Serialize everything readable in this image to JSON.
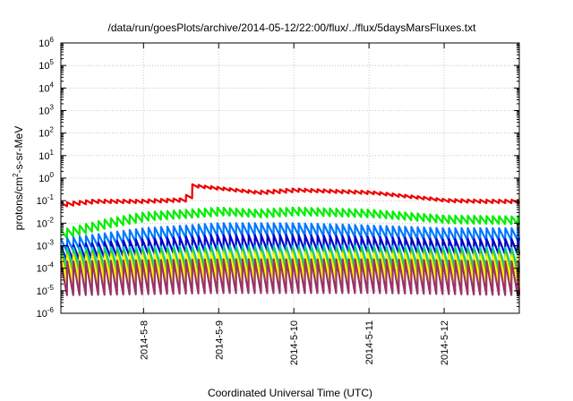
{
  "chart_data": {
    "type": "line",
    "title": "/data/run/goesPlots/archive/2014-05-12/22:00/flux/../flux/5daysMarsFluxes.txt",
    "xlabel": "Coordinated Universal Time (UTC)",
    "ylabel": {
      "pre": "protons/cm",
      "sup": "2",
      "post": "-s-sr-MeV"
    },
    "yscale": "log",
    "ylim_exp": [
      -6,
      6
    ],
    "y_ticks": [
      {
        "base": "10",
        "exp": "-6",
        "value": 1e-06
      },
      {
        "base": "10",
        "exp": "-5",
        "value": 1e-05
      },
      {
        "base": "10",
        "exp": "-4",
        "value": 0.0001
      },
      {
        "base": "10",
        "exp": "-3",
        "value": 0.001
      },
      {
        "base": "10",
        "exp": "-2",
        "value": 0.01
      },
      {
        "base": "10",
        "exp": "-1",
        "value": 0.1
      },
      {
        "base": "10",
        "exp": "0",
        "value": 1
      },
      {
        "base": "10",
        "exp": "1",
        "value": 10
      },
      {
        "base": "10",
        "exp": "2",
        "value": 100
      },
      {
        "base": "10",
        "exp": "3",
        "value": 1000
      },
      {
        "base": "10",
        "exp": "4",
        "value": 10000
      },
      {
        "base": "10",
        "exp": "5",
        "value": 100000
      },
      {
        "base": "10",
        "exp": "6",
        "value": 1000000
      }
    ],
    "x_ticks": [
      "2014-5-8",
      "2014-5-9",
      "2014-5-10",
      "2014-5-11",
      "2014-5-12"
    ],
    "x_tick_days": [
      1.0,
      2.0,
      3.0,
      4.0,
      5.0
    ],
    "x_range_days": [
      -0.1,
      6.0
    ],
    "sawtooth_period_days": 0.0833,
    "grid": true,
    "legend": "none",
    "series": [
      {
        "color": "#ee0000",
        "profile": [
          [
            -0.1,
            0.08
          ],
          [
            0.3,
            0.11
          ],
          [
            0.9,
            0.11
          ],
          [
            1.55,
            0.13
          ],
          [
            1.62,
            0.55
          ],
          [
            2.5,
            0.27
          ],
          [
            3.0,
            0.35
          ],
          [
            4.0,
            0.27
          ],
          [
            5.0,
            0.12
          ],
          [
            5.5,
            0.11
          ],
          [
            6.0,
            0.11
          ]
        ],
        "swing_decades": 0.15
      },
      {
        "color": "#00ee00",
        "profile": [
          [
            -0.1,
            0.005
          ],
          [
            0.5,
            0.015
          ],
          [
            1.0,
            0.03
          ],
          [
            1.6,
            0.04
          ],
          [
            2.0,
            0.05
          ],
          [
            2.5,
            0.04
          ],
          [
            3.0,
            0.05
          ],
          [
            4.0,
            0.04
          ],
          [
            5.0,
            0.022
          ],
          [
            6.0,
            0.02
          ]
        ],
        "swing_decades": 0.35
      },
      {
        "color": "#0077ff",
        "profile": [
          [
            -0.1,
            0.002
          ],
          [
            1.0,
            0.006
          ],
          [
            2.0,
            0.01
          ],
          [
            3.0,
            0.01
          ],
          [
            4.0,
            0.008
          ],
          [
            5.0,
            0.006
          ],
          [
            6.0,
            0.006
          ]
        ],
        "swing_decades": 0.55
      },
      {
        "color": "#0000cc",
        "profile": [
          [
            -0.1,
            0.001
          ],
          [
            1.0,
            0.002
          ],
          [
            2.0,
            0.003
          ],
          [
            3.0,
            0.003
          ],
          [
            4.0,
            0.0025
          ],
          [
            5.0,
            0.002
          ],
          [
            6.0,
            0.002
          ]
        ],
        "swing_decades": 0.7
      },
      {
        "color": "#00cccc",
        "profile": [
          [
            -0.1,
            0.0008
          ],
          [
            2.0,
            0.001
          ],
          [
            4.0,
            0.001
          ],
          [
            6.0,
            0.0008
          ]
        ],
        "swing_decades": 0.9
      },
      {
        "color": "#33cc33",
        "profile": [
          [
            -0.1,
            0.0006
          ],
          [
            2.0,
            0.0007
          ],
          [
            4.0,
            0.0007
          ],
          [
            6.0,
            0.0006
          ]
        ],
        "swing_decades": 1.0
      },
      {
        "color": "#dddd00",
        "profile": [
          [
            -0.1,
            0.0004
          ],
          [
            2.0,
            0.0005
          ],
          [
            4.0,
            0.0005
          ],
          [
            6.0,
            0.0004
          ]
        ],
        "swing_decades": 1.1
      },
      {
        "color": "#ffff00",
        "profile": [
          [
            -0.1,
            0.0003
          ],
          [
            2.0,
            0.0004
          ],
          [
            4.0,
            0.0004
          ],
          [
            6.0,
            0.0003
          ]
        ],
        "swing_decades": 1.15
      },
      {
        "color": "#993366",
        "profile": [
          [
            -0.1,
            0.0002
          ],
          [
            2.0,
            0.00025
          ],
          [
            4.0,
            0.00025
          ],
          [
            6.0,
            0.0002
          ]
        ],
        "swing_decades": 1.5
      }
    ]
  }
}
